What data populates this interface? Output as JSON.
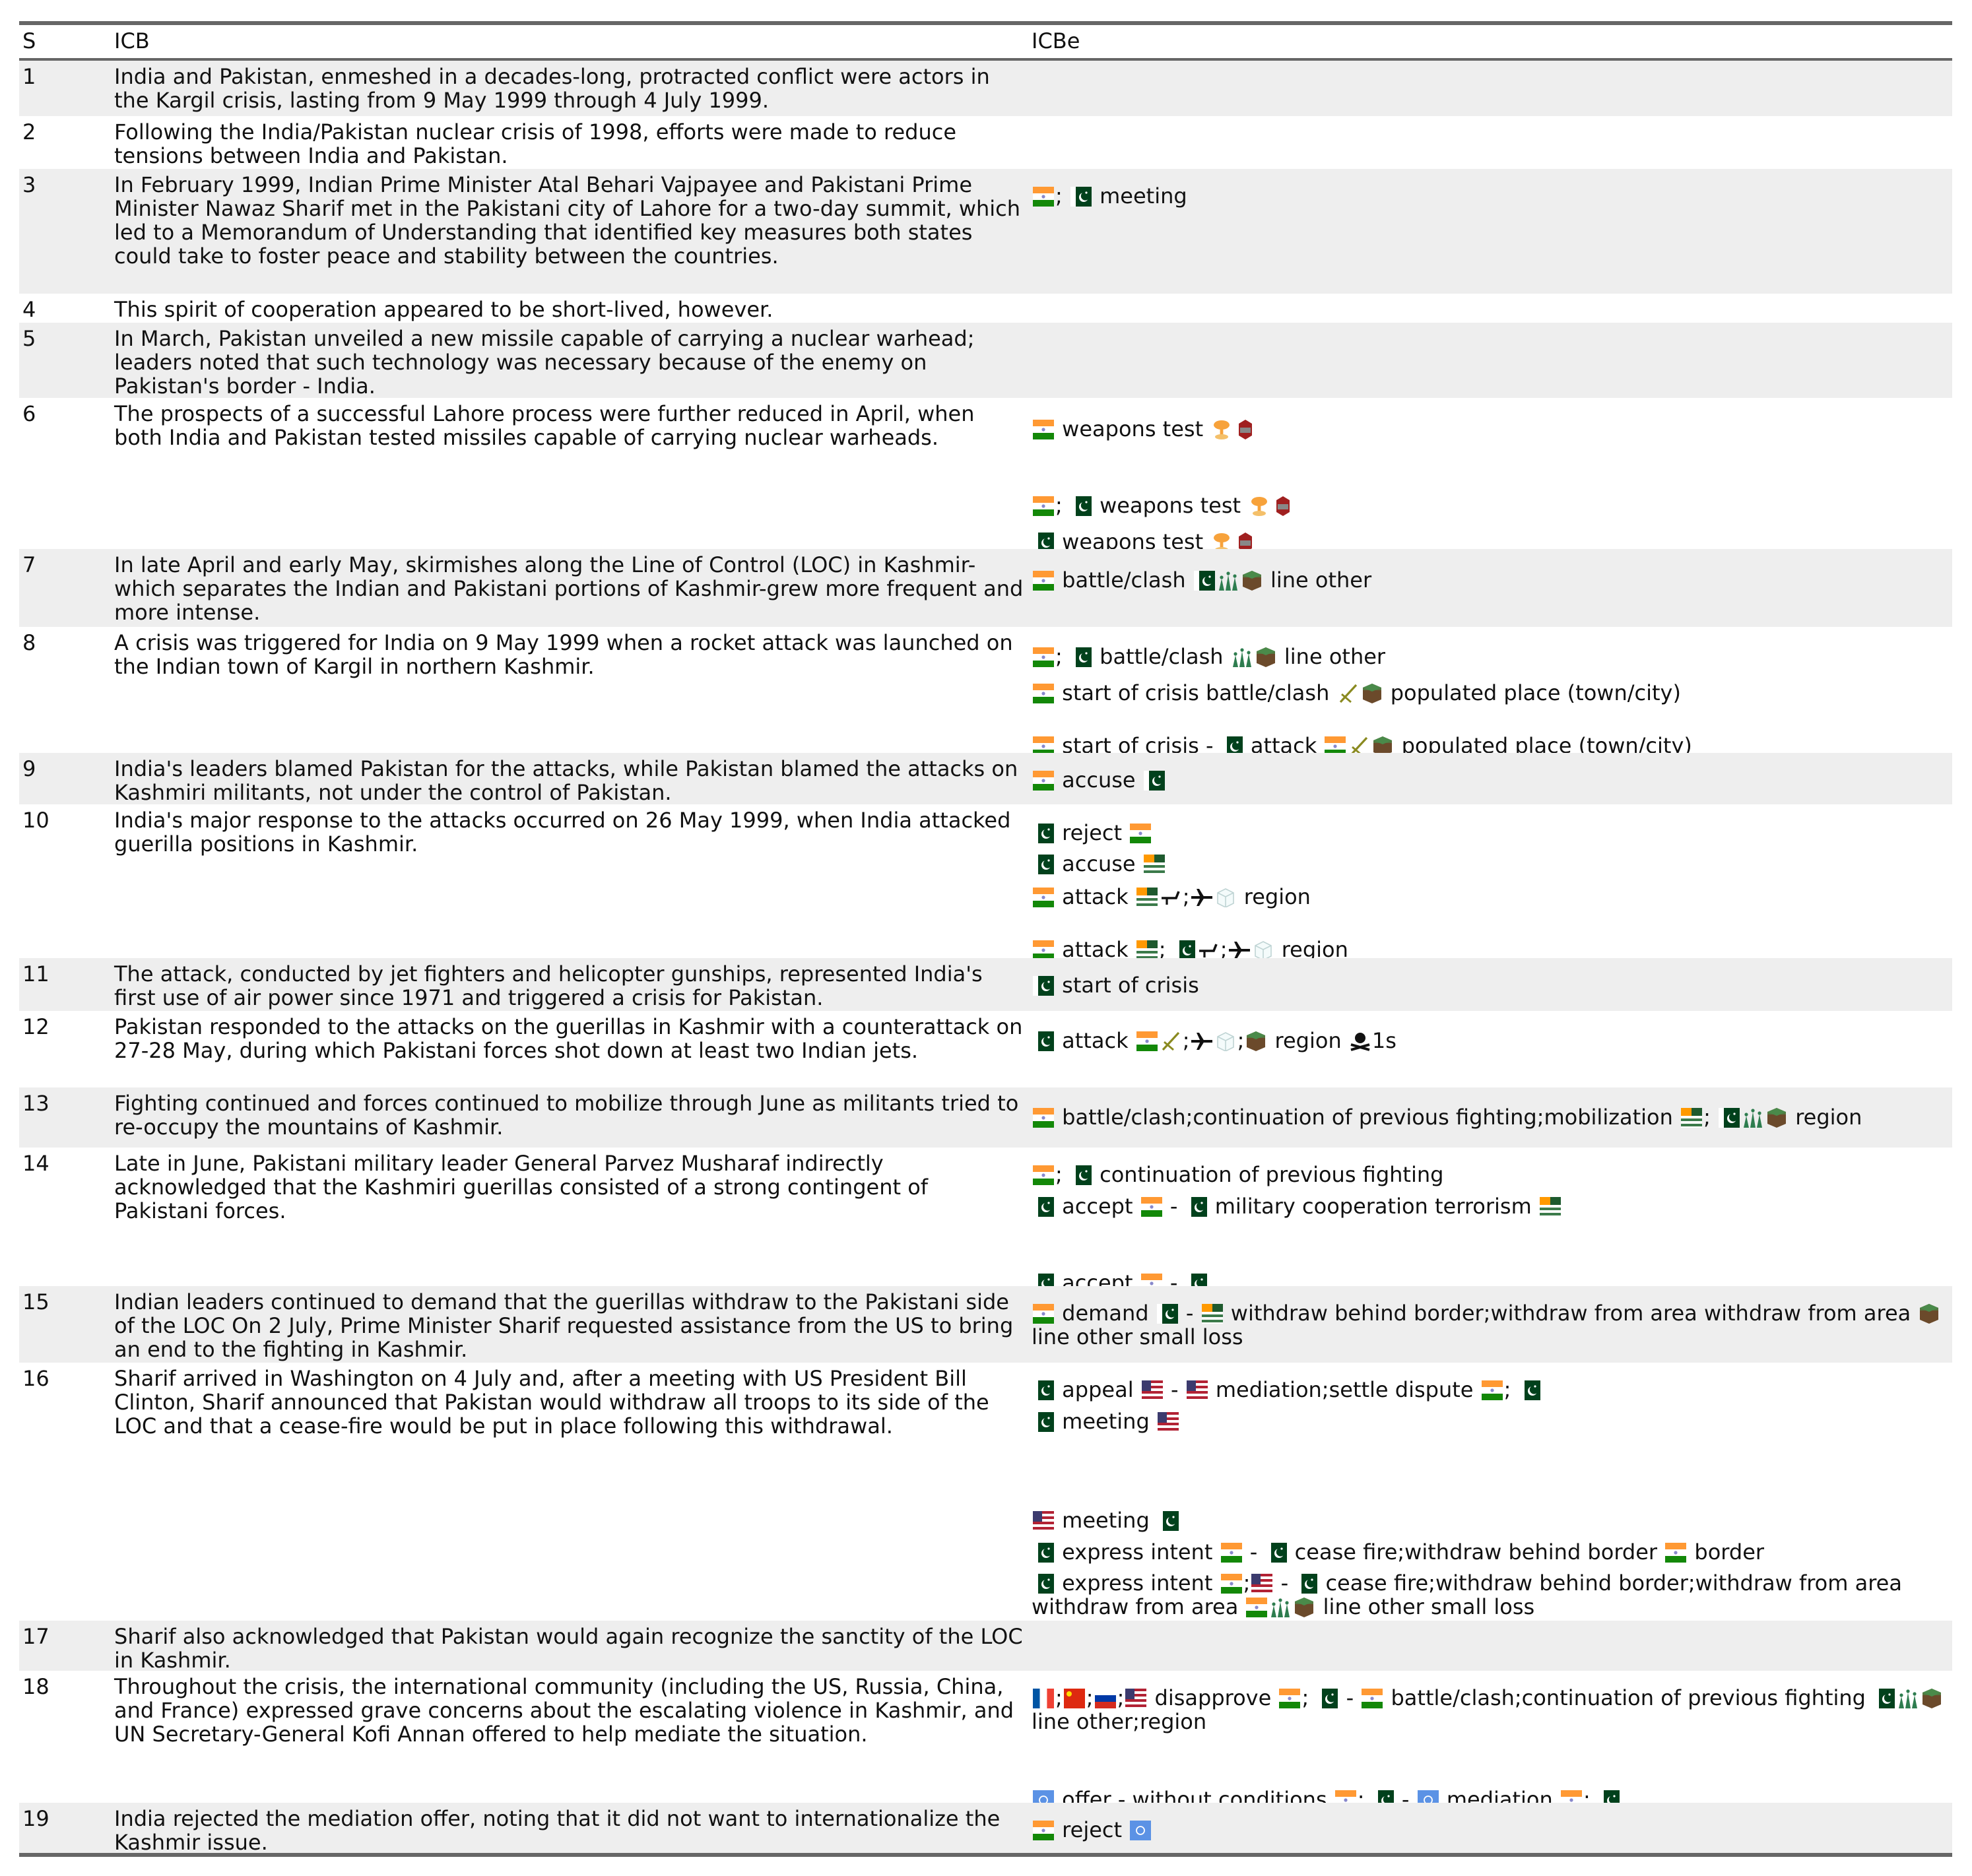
{
  "table": {
    "headers": {
      "s": "S",
      "icb": "ICB",
      "icbe": "ICBe"
    },
    "rows": [
      {
        "s": "1",
        "icb": "India and Pakistan, enmeshed in a decades-long, protracted conflict were actors in the Kargil crisis, lasting from 9 May 1999 through 4 July 1999.",
        "icbe": []
      },
      {
        "s": "2",
        "icb": "Following the India/Pakistan nuclear crisis of 1998, efforts were made to reduce tensions between India and Pakistan.",
        "icbe": []
      },
      {
        "s": "3",
        "icb": "In February 1999, Indian Prime Minister Atal Behari Vajpayee and Pakistani Prime Minister Nawaz Sharif met in the Pakistani city of Lahore for a two-day summit, which led to a Memorandum of Understanding that identified key measures both states could take to foster peace and stability between the countries.",
        "icbe": [
          [
            {
              "icon": "india-flag"
            },
            "; ",
            {
              "icon": "pakistan-flag"
            },
            " meeting"
          ]
        ]
      },
      {
        "s": "4",
        "icb": "This spirit of cooperation appeared to be short-lived, however.",
        "icbe": []
      },
      {
        "s": "5",
        "icb": "In March, Pakistan unveiled a new missile capable of carrying a nuclear warhead; leaders noted that such technology was necessary because of the enemy on Pakistan's border - India.",
        "icbe": []
      },
      {
        "s": "6",
        "icb": "The prospects of a successful Lahore process were further reduced in April, when both India and Pakistan tested missiles capable of carrying nuclear warheads.",
        "icbe": [
          [
            {
              "icon": "india-flag"
            },
            " weapons test ",
            {
              "icon": "nuclear-explosion"
            },
            {
              "icon": "missile"
            }
          ],
          [
            {
              "icon": "india-flag"
            },
            "; ",
            {
              "icon": "pakistan-flag"
            },
            " weapons test ",
            {
              "icon": "nuclear-explosion"
            },
            {
              "icon": "missile"
            }
          ],
          [
            {
              "icon": "pakistan-flag"
            },
            " weapons test ",
            {
              "icon": "nuclear-explosion"
            },
            {
              "icon": "missile"
            }
          ]
        ]
      },
      {
        "s": "7",
        "icb": "In late April and early May, skirmishes along the Line of Control (LOC) in Kashmir-which separates the Indian and Pakistani portions of Kashmir-grew more frequent and more intense.",
        "icbe": [
          [
            {
              "icon": "india-flag"
            },
            " battle/clash ",
            {
              "icon": "pakistan-flag"
            },
            {
              "icon": "troops"
            },
            {
              "icon": "ground-block"
            },
            " line other"
          ]
        ]
      },
      {
        "s": "8",
        "icb": "A crisis was triggered for India on 9 May 1999 when a rocket attack was launched on the Indian town of Kargil in northern Kashmir.",
        "icbe": [
          [
            {
              "icon": "india-flag"
            },
            "; ",
            {
              "icon": "pakistan-flag"
            },
            " battle/clash ",
            {
              "icon": "troops"
            },
            {
              "icon": "ground-block"
            },
            " line other"
          ],
          [
            {
              "icon": "india-flag"
            },
            " start of crisis battle/clash ",
            {
              "icon": "artillery"
            },
            {
              "icon": "ground-block"
            },
            " populated place (town/city)"
          ],
          [
            {
              "icon": "india-flag"
            },
            " start of crisis - ",
            {
              "icon": "pakistan-flag"
            },
            " attack ",
            {
              "icon": "india-flag"
            },
            {
              "icon": "artillery"
            },
            {
              "icon": "ground-block"
            },
            " populated place (town/city)"
          ]
        ]
      },
      {
        "s": "9",
        "icb": "India's leaders blamed Pakistan for the attacks, while Pakistan blamed the attacks on Kashmiri militants, not under the control of Pakistan.",
        "icbe": [
          [
            {
              "icon": "india-flag"
            },
            " accuse ",
            {
              "icon": "pakistan-flag"
            }
          ]
        ]
      },
      {
        "s": "10",
        "icb": "India's major response to the attacks occurred on 26 May 1999, when India attacked guerilla positions in Kashmir.",
        "icbe": [
          [
            {
              "icon": "pakistan-flag"
            },
            " reject ",
            {
              "icon": "india-flag"
            }
          ],
          [
            {
              "icon": "pakistan-flag"
            },
            " accuse ",
            {
              "icon": "kashmir-flag"
            }
          ],
          [
            {
              "icon": "india-flag"
            },
            " attack ",
            {
              "icon": "kashmir-flag"
            },
            {
              "icon": "helicopter"
            },
            ";",
            {
              "icon": "jet"
            },
            {
              "icon": "ice-cube"
            },
            " region"
          ],
          [
            {
              "icon": "india-flag"
            },
            " attack ",
            {
              "icon": "kashmir-flag"
            },
            "; ",
            {
              "icon": "pakistan-flag"
            },
            {
              "icon": "helicopter"
            },
            ";",
            {
              "icon": "jet"
            },
            {
              "icon": "ice-cube"
            },
            " region"
          ]
        ]
      },
      {
        "s": "11",
        "icb": "The attack, conducted by jet fighters and helicopter gunships, represented India's first use of air power since 1971 and triggered a crisis for Pakistan.",
        "icbe": [
          [
            {
              "icon": "pakistan-flag"
            },
            " start of crisis"
          ]
        ]
      },
      {
        "s": "12",
        "icb": "Pakistan responded to the attacks on the guerillas in Kashmir with a counterattack on 27-28 May, during which Pakistani forces shot down at least two Indian jets.",
        "icbe": [
          [
            {
              "icon": "pakistan-flag"
            },
            " attack ",
            {
              "icon": "india-flag"
            },
            {
              "icon": "artillery"
            },
            ";",
            {
              "icon": "jet"
            },
            {
              "icon": "ice-cube"
            },
            ";",
            {
              "icon": "ground-block"
            },
            " region ",
            {
              "icon": "skull"
            },
            "1s"
          ]
        ]
      },
      {
        "s": "13",
        "icb": "Fighting continued and forces continued to mobilize through June as militants tried to re-occupy the mountains of Kashmir.",
        "icbe": [
          [
            {
              "icon": "india-flag"
            },
            " battle/clash;continuation of previous fighting;mobilization ",
            {
              "icon": "kashmir-flag"
            },
            "; ",
            {
              "icon": "pakistan-flag"
            },
            {
              "icon": "troops"
            },
            {
              "icon": "ground-block"
            },
            " region"
          ]
        ]
      },
      {
        "s": "14",
        "icb": "Late in June, Pakistani military leader General Parvez Musharaf indirectly acknowledged that the Kashmiri guerillas consisted of a strong contingent of Pakistani forces.",
        "icbe": [
          [
            {
              "icon": "india-flag"
            },
            "; ",
            {
              "icon": "pakistan-flag"
            },
            " continuation of previous fighting"
          ],
          [
            {
              "icon": "pakistan-flag"
            },
            " accept ",
            {
              "icon": "india-flag"
            },
            " - ",
            {
              "icon": "pakistan-flag"
            },
            " military cooperation terrorism ",
            {
              "icon": "kashmir-flag"
            }
          ],
          [
            {
              "icon": "pakistan-flag"
            },
            " accept ",
            {
              "icon": "india-flag"
            },
            " - ",
            {
              "icon": "pakistan-flag"
            }
          ]
        ]
      },
      {
        "s": "15",
        "icb": "Indian leaders continued to demand that the guerillas withdraw to the Pakistani side of the LOC On 2 July, Prime Minister Sharif requested assistance from the US to bring an end to the fighting in Kashmir.",
        "icbe": [
          [
            {
              "icon": "india-flag"
            },
            " demand ",
            {
              "icon": "pakistan-flag"
            },
            " - ",
            {
              "icon": "kashmir-flag"
            },
            " withdraw behind border;withdraw from area withdraw from area ",
            {
              "icon": "ground-block"
            },
            " line other small loss"
          ]
        ]
      },
      {
        "s": "16",
        "icb": "Sharif arrived in Washington on 4 July and, after a meeting with US President Bill Clinton, Sharif announced that Pakistan would withdraw all troops to its side of the LOC and that a cease-fire would be put in place following this withdrawal.",
        "icbe": [
          [
            {
              "icon": "pakistan-flag"
            },
            " appeal ",
            {
              "icon": "usa-flag"
            },
            " - ",
            {
              "icon": "usa-flag"
            },
            " mediation;settle dispute ",
            {
              "icon": "india-flag"
            },
            "; ",
            {
              "icon": "pakistan-flag"
            }
          ],
          [
            {
              "icon": "pakistan-flag"
            },
            " meeting ",
            {
              "icon": "usa-flag"
            }
          ],
          [
            {
              "icon": "usa-flag"
            },
            " meeting ",
            {
              "icon": "pakistan-flag"
            }
          ],
          [
            {
              "icon": "pakistan-flag"
            },
            " express intent ",
            {
              "icon": "india-flag"
            },
            " - ",
            {
              "icon": "pakistan-flag"
            },
            " cease fire;withdraw behind border ",
            {
              "icon": "india-flag"
            },
            " border"
          ],
          [
            {
              "icon": "pakistan-flag"
            },
            " express intent ",
            {
              "icon": "india-flag"
            },
            ";",
            {
              "icon": "usa-flag"
            },
            " - ",
            {
              "icon": "pakistan-flag"
            },
            " cease fire;withdraw behind border;withdraw from area withdraw from area ",
            {
              "icon": "india-flag"
            },
            {
              "icon": "troops"
            },
            {
              "icon": "ground-block"
            },
            " line other small loss"
          ]
        ]
      },
      {
        "s": "17",
        "icb": "Sharif also acknowledged that Pakistan would again recognize the sanctity of the LOC in Kashmir.",
        "icbe": []
      },
      {
        "s": "18",
        "icb": "Throughout the crisis, the international community (including the US, Russia, China, and France) expressed grave concerns about the escalating violence in Kashmir, and UN Secretary-General Kofi Annan offered to help mediate the situation.",
        "icbe": [
          [
            {
              "icon": "france-flag"
            },
            ";",
            {
              "icon": "china-flag"
            },
            ";",
            {
              "icon": "russia-flag"
            },
            ";",
            {
              "icon": "usa-flag"
            },
            " disapprove ",
            {
              "icon": "india-flag"
            },
            "; ",
            {
              "icon": "pakistan-flag"
            },
            " - ",
            {
              "icon": "india-flag"
            },
            " battle/clash;continuation of previous fighting ",
            {
              "icon": "pakistan-flag"
            },
            {
              "icon": "troops"
            },
            {
              "icon": "ground-block"
            },
            " line other;region"
          ],
          [
            {
              "icon": "un-flag"
            },
            " offer - without conditions ",
            {
              "icon": "india-flag"
            },
            "; ",
            {
              "icon": "pakistan-flag"
            },
            " - ",
            {
              "icon": "un-flag"
            },
            " mediation ",
            {
              "icon": "india-flag"
            },
            "; ",
            {
              "icon": "pakistan-flag"
            }
          ]
        ]
      },
      {
        "s": "19",
        "icb": "India rejected the mediation offer, noting that it did not want to internationalize the Kashmir issue.",
        "icbe": [
          [
            {
              "icon": "india-flag"
            },
            " reject ",
            {
              "icon": "un-flag"
            }
          ]
        ]
      }
    ]
  },
  "colors": {
    "row_shade": "#eeeeee",
    "rule": "#666666"
  }
}
